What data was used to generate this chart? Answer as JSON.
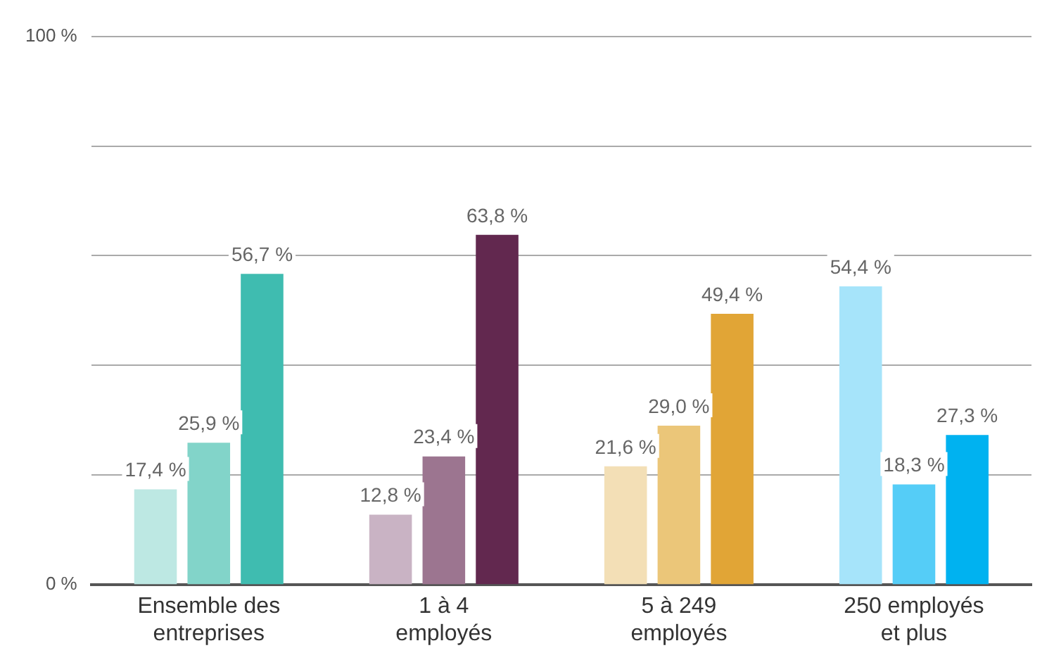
{
  "chart_data": {
    "type": "bar",
    "categories": [
      "Ensemble des entreprises",
      "1 à 4 employés",
      "5 à 249 employés",
      "250 employés et plus"
    ],
    "series": [
      {
        "colors": [
          "#bde8e3",
          "#c9b3c4",
          "#f3dfb6",
          "#a6e4fa"
        ],
        "values": [
          17.4,
          12.8,
          21.6,
          54.4
        ],
        "value_labels": [
          "17,4 %",
          "12,8 %",
          "21,6 %",
          "54,4 %"
        ]
      },
      {
        "colors": [
          "#82d4c9",
          "#9c7590",
          "#ebc679",
          "#55cdf7"
        ],
        "values": [
          25.9,
          23.4,
          29.0,
          18.3
        ],
        "value_labels": [
          "25,9 %",
          "23,4 %",
          "29,0 %",
          "18,3 %"
        ]
      },
      {
        "colors": [
          "#3fbcb0",
          "#62284f",
          "#e1a536",
          "#00b2f0"
        ],
        "values": [
          56.7,
          63.8,
          49.4,
          27.3
        ],
        "value_labels": [
          "56,7 %",
          "63,8 %",
          "49,4 %",
          "27,3 %"
        ]
      }
    ],
    "ylim": [
      0,
      100
    ],
    "yticks": [
      {
        "value": 0,
        "label": "0 %"
      },
      {
        "value": 20,
        "label": null
      },
      {
        "value": 40,
        "label": null
      },
      {
        "value": 60,
        "label": null
      },
      {
        "value": 80,
        "label": null
      },
      {
        "value": 100,
        "label": "100 %"
      }
    ],
    "grid": "y",
    "legend": false
  }
}
